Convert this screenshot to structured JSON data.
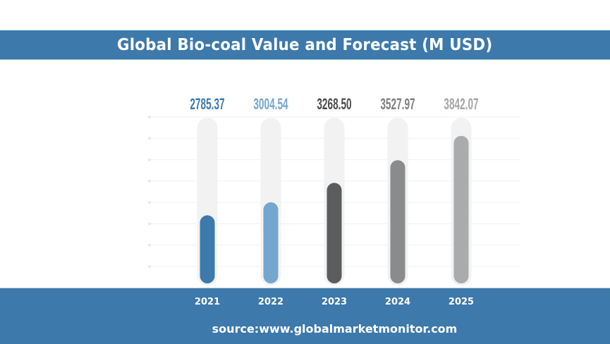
{
  "title": "Global Bio-coal Value and Forecast (M USD)",
  "source": "source:www.globalmarketmonitor.com",
  "colors": {
    "band": "#3d79ab",
    "track": "#f2f2f2",
    "grid": "#eef2f6"
  },
  "chart_data": {
    "type": "bar",
    "title": "Global Bio-coal Value and Forecast (M USD)",
    "xlabel": "",
    "ylabel": "",
    "categories": [
      "2021",
      "2022",
      "2023",
      "2024",
      "2025"
    ],
    "values": [
      2785.37,
      3004.54,
      3268.5,
      3527.97,
      3842.07
    ],
    "value_labels": [
      "2785.37",
      "3004.54",
      "3268.50",
      "3527.97",
      "3842.07"
    ],
    "bar_colors": [
      "#3d79ab",
      "#74a6cf",
      "#5b5c5e",
      "#8a8b8d",
      "#aaabad"
    ],
    "label_colors": [
      "#3d79ab",
      "#74a6cf",
      "#4a4a4a",
      "#7f7f7f",
      "#a6a6a6"
    ],
    "fill_fraction": [
      0.42,
      0.5,
      0.62,
      0.76,
      0.91
    ],
    "grid": true,
    "legend": "none"
  }
}
